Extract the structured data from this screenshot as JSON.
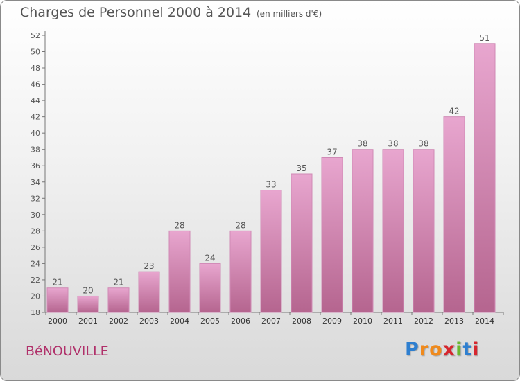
{
  "title": "Charges de Personnel 2000 à 2014",
  "subtitle": "(en milliers d'€)",
  "commune": "BéNOUVILLE",
  "logo": {
    "letters": [
      "P",
      "r",
      "o",
      "x",
      "i",
      "t",
      "i"
    ],
    "colors": [
      "#2e7fd0",
      "#f08a1c",
      "#f08a1c",
      "#d6262e",
      "#6ab82e",
      "#2e7fd0",
      "#d6262e"
    ]
  },
  "colors": {
    "bar_top": "#e8a6cf",
    "bar_bottom": "#b5658f",
    "bar_edge": "#d08ab5",
    "commune": "#b0306a"
  },
  "chart_data": {
    "type": "bar",
    "categories": [
      "2000",
      "2001",
      "2002",
      "2003",
      "2004",
      "2005",
      "2006",
      "2007",
      "2008",
      "2009",
      "2010",
      "2011",
      "2012",
      "2013",
      "2014"
    ],
    "values": [
      21,
      20,
      21,
      23,
      28,
      24,
      28,
      33,
      35,
      37,
      38,
      38,
      38,
      42,
      51
    ],
    "ylim": [
      18,
      52
    ],
    "yticks": [
      18,
      20,
      22,
      24,
      26,
      28,
      30,
      32,
      34,
      36,
      38,
      40,
      42,
      44,
      46,
      48,
      50,
      52
    ],
    "grid": false,
    "legend": "none"
  }
}
